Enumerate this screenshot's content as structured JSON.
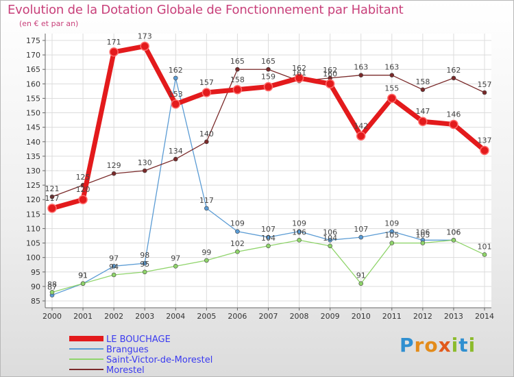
{
  "header": {
    "title": "Evolution de la Dotation Globale de Fonctionnement par Habitant",
    "subtitle": "(en € et par an)"
  },
  "logo": {
    "text": "Proxiti"
  },
  "chart_data": {
    "type": "line",
    "title": "Evolution de la Dotation Globale de Fonctionnement par Habitant",
    "subtitle": "(en € et par an)",
    "xlabel": "",
    "ylabel": "",
    "categories": [
      "2000",
      "2001",
      "2002",
      "2003",
      "2004",
      "2005",
      "2006",
      "2007",
      "2008",
      "2009",
      "2010",
      "2011",
      "2012",
      "2013",
      "2014"
    ],
    "ylim": [
      85,
      175
    ],
    "yticks": [
      85,
      90,
      95,
      100,
      105,
      110,
      115,
      120,
      125,
      130,
      135,
      140,
      145,
      150,
      155,
      160,
      165,
      170,
      175
    ],
    "grid": true,
    "legend_position": "bottom-left",
    "series": [
      {
        "name": "LE BOUCHAGE",
        "color": "#e31a1c",
        "width": "thick",
        "values": [
          117,
          120,
          171,
          173,
          153,
          157,
          158,
          159,
          162,
          160,
          142,
          155,
          147,
          146,
          137
        ]
      },
      {
        "name": "Brangues",
        "color": "#5a9bd4",
        "width": "thin",
        "values": [
          87,
          91,
          97,
          98,
          162,
          117,
          109,
          107,
          109,
          106,
          107,
          109,
          106,
          106,
          null
        ]
      },
      {
        "name": "Saint-Victor-de-Morestel",
        "color": "#8fd46a",
        "width": "thin",
        "values": [
          88,
          91,
          94,
          95,
          97,
          99,
          102,
          104,
          106,
          104,
          91,
          105,
          105,
          106,
          101
        ]
      },
      {
        "name": "Morestel",
        "color": "#7a2a2a",
        "width": "thin",
        "values": [
          121,
          125,
          129,
          130,
          134,
          140,
          165,
          165,
          161,
          162,
          163,
          163,
          158,
          162,
          157
        ]
      }
    ]
  }
}
